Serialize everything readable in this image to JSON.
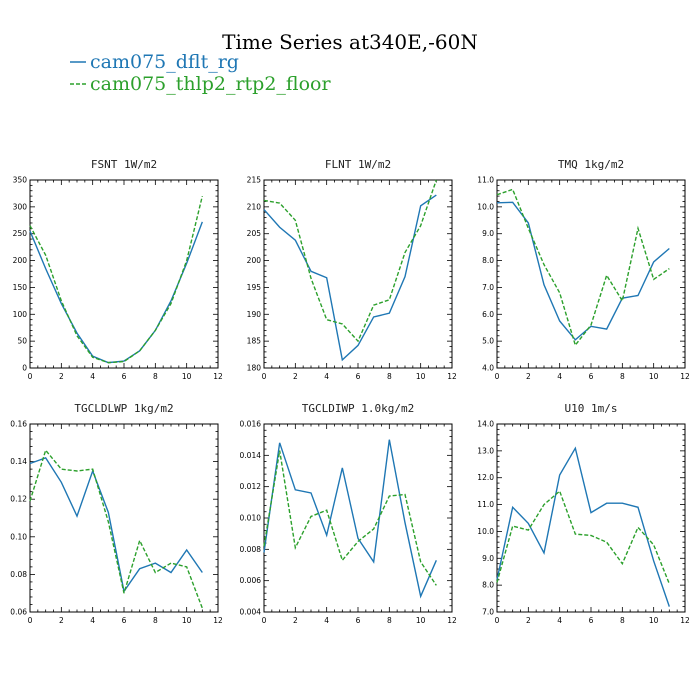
{
  "figure_title": "Time Series at340E,-60N",
  "legend": [
    {
      "label": "cam075_dflt_rg",
      "color": "#1f77b4",
      "dash": "solid"
    },
    {
      "label": "cam075_thlp2_rtp2_floor",
      "color": "#2ca02c",
      "dash": "dashed"
    }
  ],
  "chart_data": [
    {
      "type": "line",
      "title": "FSNT   1W/m2",
      "x": [
        0,
        1,
        2,
        3,
        4,
        5,
        6,
        7,
        8,
        9,
        10,
        11
      ],
      "xlim": [
        0,
        12
      ],
      "xticks": [
        0,
        2,
        4,
        6,
        8,
        10,
        12
      ],
      "xtick_labels": [
        "0",
        "2",
        "4",
        "6",
        "8",
        "10",
        "12"
      ],
      "ylim": [
        0,
        350
      ],
      "yticks": [
        0,
        50,
        100,
        150,
        200,
        250,
        300,
        350
      ],
      "ytick_labels": [
        "0",
        "50",
        "100",
        "150",
        "200",
        "250",
        "300",
        "350"
      ],
      "series": [
        {
          "name": "cam075_dflt_rg",
          "values": [
            255,
            185,
            120,
            65,
            22,
            10,
            13,
            32,
            70,
            125,
            195,
            272
          ]
        },
        {
          "name": "cam075_thlp2_rtp2_floor",
          "values": [
            265,
            210,
            125,
            60,
            20,
            10,
            12,
            32,
            70,
            120,
            200,
            320
          ]
        }
      ]
    },
    {
      "type": "line",
      "title": "FLNT   1W/m2",
      "x": [
        0,
        1,
        2,
        3,
        4,
        5,
        6,
        7,
        8,
        9,
        10,
        11
      ],
      "xlim": [
        0,
        12
      ],
      "xticks": [
        0,
        2,
        4,
        6,
        8,
        10,
        12
      ],
      "xtick_labels": [
        "0",
        "2",
        "4",
        "6",
        "8",
        "10",
        "12"
      ],
      "ylim": [
        180,
        215
      ],
      "yticks": [
        180,
        185,
        190,
        195,
        200,
        205,
        210,
        215
      ],
      "ytick_labels": [
        "180",
        "185",
        "190",
        "195",
        "200",
        "205",
        "210",
        "215"
      ],
      "series": [
        {
          "name": "cam075_dflt_rg",
          "values": [
            209.5,
            206.2,
            203.8,
            198,
            196.8,
            181.5,
            184.2,
            189.5,
            190.2,
            197,
            210.2,
            212.2
          ]
        },
        {
          "name": "cam075_thlp2_rtp2_floor",
          "values": [
            211.2,
            210.7,
            207.5,
            196.7,
            189,
            188.2,
            185,
            191.7,
            192.7,
            201.5,
            206.5,
            215
          ]
        }
      ]
    },
    {
      "type": "line",
      "title": "TMQ   1kg/m2",
      "x": [
        0,
        1,
        2,
        3,
        4,
        5,
        6,
        7,
        8,
        9,
        10,
        11
      ],
      "xlim": [
        0,
        12
      ],
      "xticks": [
        0,
        2,
        4,
        6,
        8,
        10,
        12
      ],
      "xtick_labels": [
        "0",
        "2",
        "4",
        "6",
        "8",
        "10",
        "12"
      ],
      "ylim": [
        4,
        11
      ],
      "yticks": [
        4,
        5,
        6,
        7,
        8,
        9,
        10,
        11
      ],
      "ytick_labels": [
        "4.0",
        "5.0",
        "6.0",
        "7.0",
        "8.0",
        "9.0",
        "10.0",
        "11.0"
      ],
      "series": [
        {
          "name": "cam075_dflt_rg",
          "values": [
            10.15,
            10.17,
            9.4,
            7.1,
            5.75,
            5.05,
            5.55,
            5.45,
            6.6,
            6.7,
            7.95,
            8.45
          ]
        },
        {
          "name": "cam075_thlp2_rtp2_floor",
          "values": [
            10.45,
            10.65,
            9.2,
            7.85,
            6.8,
            4.85,
            5.6,
            7.45,
            6.5,
            9.2,
            7.3,
            7.7
          ]
        }
      ]
    },
    {
      "type": "line",
      "title": "TGCLDLWP   1kg/m2",
      "x": [
        0,
        1,
        2,
        3,
        4,
        5,
        6,
        7,
        8,
        9,
        10,
        11
      ],
      "xlim": [
        0,
        12
      ],
      "xticks": [
        0,
        2,
        4,
        6,
        8,
        10,
        12
      ],
      "xtick_labels": [
        "0",
        "2",
        "4",
        "6",
        "8",
        "10",
        "12"
      ],
      "ylim": [
        0.06,
        0.16
      ],
      "yticks": [
        0.06,
        0.08,
        0.1,
        0.12,
        0.14,
        0.16
      ],
      "ytick_labels": [
        "0.06",
        "0.08",
        "0.10",
        "0.12",
        "0.14",
        "0.16"
      ],
      "series": [
        {
          "name": "cam075_dflt_rg",
          "values": [
            0.139,
            0.142,
            0.129,
            0.111,
            0.135,
            0.113,
            0.071,
            0.083,
            0.086,
            0.081,
            0.093,
            0.081
          ]
        },
        {
          "name": "cam075_thlp2_rtp2_floor",
          "values": [
            0.119,
            0.146,
            0.136,
            0.135,
            0.136,
            0.108,
            0.07,
            0.098,
            0.081,
            0.086,
            0.084,
            0.062
          ]
        }
      ]
    },
    {
      "type": "line",
      "title": "TGCLDIWP   1.0kg/m2",
      "x": [
        0,
        1,
        2,
        3,
        4,
        5,
        6,
        7,
        8,
        9,
        10,
        11
      ],
      "xlim": [
        0,
        12
      ],
      "xticks": [
        0,
        2,
        4,
        6,
        8,
        10,
        12
      ],
      "xtick_labels": [
        "0",
        "2",
        "4",
        "6",
        "8",
        "10",
        "12"
      ],
      "ylim": [
        0.004,
        0.016
      ],
      "yticks": [
        0.004,
        0.006,
        0.008,
        0.01,
        0.012,
        0.014,
        0.016
      ],
      "ytick_labels": [
        "0.004",
        "0.006",
        "0.008",
        "0.010",
        "0.012",
        "0.014",
        "0.016"
      ],
      "series": [
        {
          "name": "cam075_dflt_rg",
          "values": [
            0.0078,
            0.0148,
            0.0118,
            0.0116,
            0.0089,
            0.0132,
            0.0087,
            0.0072,
            0.015,
            0.0097,
            0.005,
            0.0073
          ]
        },
        {
          "name": "cam075_thlp2_rtp2_floor",
          "values": [
            0.0082,
            0.0143,
            0.0081,
            0.0101,
            0.0105,
            0.0073,
            0.0085,
            0.0093,
            0.0114,
            0.0115,
            0.0072,
            0.0057
          ]
        }
      ]
    },
    {
      "type": "line",
      "title": "U10   1m/s",
      "x": [
        0,
        1,
        2,
        3,
        4,
        5,
        6,
        7,
        8,
        9,
        10,
        11
      ],
      "xlim": [
        0,
        12
      ],
      "xticks": [
        0,
        2,
        4,
        6,
        8,
        10,
        12
      ],
      "xtick_labels": [
        "0",
        "2",
        "4",
        "6",
        "8",
        "10",
        "12"
      ],
      "ylim": [
        7,
        14
      ],
      "yticks": [
        7,
        8,
        9,
        10,
        11,
        12,
        13,
        14
      ],
      "ytick_labels": [
        "7.0",
        "8.0",
        "9.0",
        "10.0",
        "11.0",
        "12.0",
        "13.0",
        "14.0"
      ],
      "series": [
        {
          "name": "cam075_dflt_rg",
          "values": [
            8.2,
            10.9,
            10.3,
            9.2,
            12.1,
            13.1,
            10.7,
            11.05,
            11.05,
            10.9,
            8.9,
            7.2
          ]
        },
        {
          "name": "cam075_thlp2_rtp2_floor",
          "values": [
            8.1,
            10.2,
            10.05,
            11.0,
            11.5,
            9.9,
            9.85,
            9.6,
            8.8,
            10.15,
            9.5,
            8.05
          ]
        }
      ]
    }
  ]
}
